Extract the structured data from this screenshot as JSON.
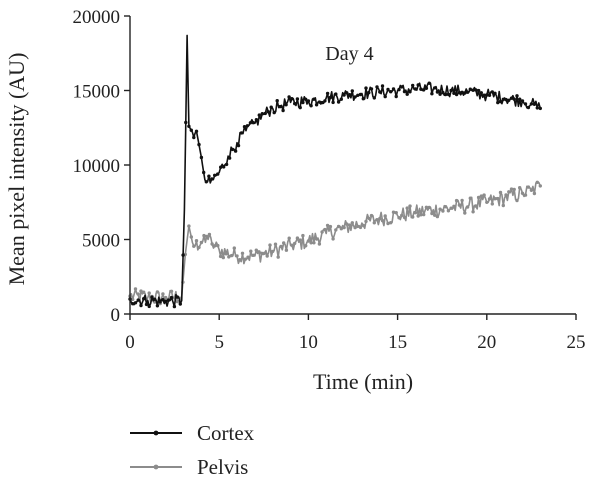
{
  "chart_data": {
    "type": "line",
    "title": "",
    "annotation": "Day 4",
    "xlabel": "Time (min)",
    "ylabel": "Mean pixel intensity (AU)",
    "xlim": [
      0,
      25
    ],
    "ylim": [
      0,
      20000
    ],
    "xticks": [
      "0",
      "5",
      "10",
      "15",
      "20",
      "25"
    ],
    "yticks": [
      "0",
      "5000",
      "10000",
      "15000",
      "20000"
    ],
    "grid": false,
    "legend_position": "bottom-left",
    "series": [
      {
        "name": "Cortex",
        "color": "#111111",
        "points": [
          [
            0,
            1000
          ],
          [
            1,
            900
          ],
          [
            2,
            850
          ],
          [
            2.9,
            900
          ],
          [
            3.05,
            7000
          ],
          [
            3.2,
            18700
          ],
          [
            3.3,
            12600
          ],
          [
            3.5,
            12200
          ],
          [
            3.8,
            11800
          ],
          [
            4.0,
            10500
          ],
          [
            4.2,
            9000
          ],
          [
            4.5,
            8800
          ],
          [
            5.0,
            9500
          ],
          [
            5.5,
            10600
          ],
          [
            6.0,
            11500
          ],
          [
            6.5,
            12300
          ],
          [
            7.0,
            12800
          ],
          [
            7.5,
            13400
          ],
          [
            8.0,
            13800
          ],
          [
            8.5,
            14000
          ],
          [
            9.0,
            14200
          ],
          [
            10.0,
            14300
          ],
          [
            11.0,
            14500
          ],
          [
            12.0,
            14700
          ],
          [
            13.0,
            14800
          ],
          [
            14.0,
            14900
          ],
          [
            15.0,
            15000
          ],
          [
            16.0,
            15100
          ],
          [
            17.0,
            15100
          ],
          [
            18.0,
            15000
          ],
          [
            19.0,
            14900
          ],
          [
            20.0,
            14700
          ],
          [
            21.0,
            14500
          ],
          [
            22.0,
            14300
          ],
          [
            22.5,
            14100
          ],
          [
            23.0,
            13800
          ]
        ]
      },
      {
        "name": "Pelvis",
        "color": "#8c8c8c",
        "points": [
          [
            0,
            1200
          ],
          [
            1,
            1100
          ],
          [
            2,
            1100
          ],
          [
            2.9,
            1200
          ],
          [
            3.1,
            4000
          ],
          [
            3.3,
            5900
          ],
          [
            3.5,
            4800
          ],
          [
            3.8,
            4300
          ],
          [
            4.0,
            4800
          ],
          [
            4.3,
            5200
          ],
          [
            4.6,
            4700
          ],
          [
            5.0,
            4300
          ],
          [
            6.0,
            3900
          ],
          [
            7.0,
            3900
          ],
          [
            8.0,
            4200
          ],
          [
            9.0,
            4600
          ],
          [
            10.0,
            4900
          ],
          [
            11.0,
            5400
          ],
          [
            12.0,
            5800
          ],
          [
            13.0,
            6100
          ],
          [
            14.0,
            6400
          ],
          [
            15.0,
            6600
          ],
          [
            16.0,
            6800
          ],
          [
            17.0,
            7000
          ],
          [
            18.0,
            7100
          ],
          [
            19.0,
            7300
          ],
          [
            20.0,
            7500
          ],
          [
            21.0,
            7800
          ],
          [
            22.0,
            8100
          ],
          [
            22.5,
            8300
          ],
          [
            23.0,
            8600
          ]
        ]
      }
    ]
  }
}
